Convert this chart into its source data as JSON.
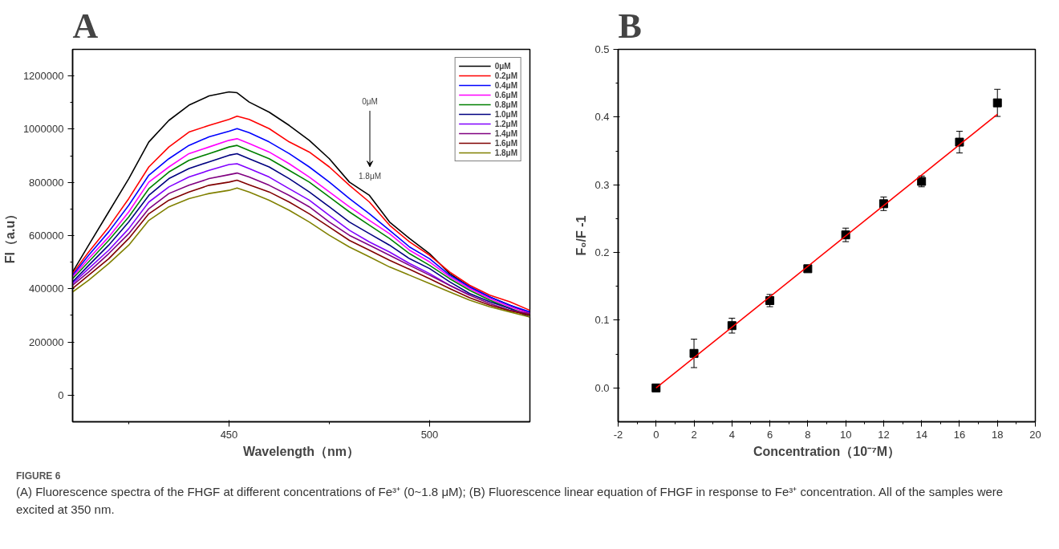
{
  "chart_data": [
    {
      "type": "line",
      "title": "A",
      "xlabel": "Wavelength（nm）",
      "ylabel": "FI（a.u）",
      "x": [
        411,
        415,
        420,
        425,
        430,
        435,
        440,
        445,
        450,
        452,
        455,
        460,
        465,
        470,
        475,
        480,
        485,
        490,
        495,
        500,
        505,
        510,
        515,
        520,
        525
      ],
      "xlim": [
        411,
        525
      ],
      "ylim": [
        -100000,
        1300000
      ],
      "xticks": [
        {
          "value": 425,
          "label": null
        },
        450,
        {
          "value": 475,
          "label": null
        },
        500
      ],
      "yticks": [
        0,
        {
          "value": 100000,
          "label": null
        },
        200000,
        {
          "value": 300000,
          "label": null
        },
        400000,
        {
          "value": 500000,
          "label": null
        },
        600000,
        {
          "value": 700000,
          "label": null
        },
        800000,
        {
          "value": 900000,
          "label": null
        },
        1000000,
        {
          "value": 1100000,
          "label": null
        },
        1200000
      ],
      "grid": false,
      "legend": "top right",
      "marker": "none",
      "line_style": "solid",
      "series": [
        {
          "name": "0μM",
          "color": "#000000",
          "values": [
            463000,
            564000,
            689000,
            814000,
            952000,
            1033000,
            1090000,
            1125000,
            1140000,
            1137000,
            1102000,
            1064000,
            1014000,
            958000,
            889000,
            801000,
            751000,
            651000,
            589000,
            532000,
            457000,
            407000,
            369000,
            338000,
            307000
          ]
        },
        {
          "name": "0.2μM",
          "color": "#ff0000",
          "values": [
            457000,
            538000,
            632000,
            739000,
            858000,
            933000,
            989000,
            1014000,
            1037000,
            1049000,
            1037000,
            1002000,
            952000,
            914000,
            858000,
            789000,
            726000,
            639000,
            576000,
            526000,
            463000,
            413000,
            376000,
            351000,
            319000
          ]
        },
        {
          "name": "0.4μM",
          "color": "#0000ff",
          "values": [
            451000,
            526000,
            614000,
            714000,
            827000,
            889000,
            939000,
            971000,
            992000,
            1002000,
            987000,
            952000,
            908000,
            858000,
            801000,
            739000,
            682000,
            620000,
            557000,
            513000,
            451000,
            407000,
            369000,
            338000,
            313000
          ]
        },
        {
          "name": "0.6μM",
          "color": "#ff00ff",
          "values": [
            445000,
            513000,
            595000,
            689000,
            801000,
            858000,
            908000,
            933000,
            958000,
            964000,
            946000,
            914000,
            870000,
            820000,
            764000,
            708000,
            657000,
            607000,
            545000,
            501000,
            445000,
            401000,
            363000,
            332000,
            307000
          ]
        },
        {
          "name": "0.8μM",
          "color": "#008000",
          "values": [
            438000,
            501000,
            582000,
            670000,
            776000,
            839000,
            883000,
            908000,
            933000,
            939000,
            920000,
            889000,
            845000,
            801000,
            745000,
            689000,
            639000,
            589000,
            532000,
            488000,
            438000,
            394000,
            357000,
            326000,
            301000
          ]
        },
        {
          "name": "1.0μM",
          "color": "#000080",
          "values": [
            426000,
            488000,
            564000,
            651000,
            751000,
            814000,
            852000,
            877000,
            902000,
            908000,
            889000,
            858000,
            814000,
            764000,
            708000,
            651000,
            607000,
            564000,
            513000,
            476000,
            426000,
            382000,
            351000,
            326000,
            294000
          ]
        },
        {
          "name": "1.2μM",
          "color": "#8000ff",
          "values": [
            420000,
            476000,
            545000,
            626000,
            726000,
            783000,
            820000,
            845000,
            867000,
            870000,
            852000,
            820000,
            776000,
            733000,
            676000,
            620000,
            576000,
            538000,
            495000,
            457000,
            413000,
            376000,
            null,
            null,
            null
          ]
        },
        {
          "name": "1.4μM",
          "color": "#800080",
          "values": [
            413000,
            463000,
            532000,
            607000,
            701000,
            758000,
            789000,
            814000,
            829000,
            835000,
            820000,
            789000,
            751000,
            708000,
            651000,
            601000,
            564000,
            526000,
            488000,
            451000,
            413000,
            376000,
            344000,
            319000,
            307000
          ]
        },
        {
          "name": "1.6μM",
          "color": "#800000",
          "values": [
            401000,
            451000,
            513000,
            589000,
            682000,
            733000,
            764000,
            789000,
            801000,
            808000,
            791000,
            764000,
            726000,
            682000,
            632000,
            582000,
            545000,
            507000,
            473000,
            438000,
            401000,
            366000,
            338000,
            317000,
            301000
          ]
        },
        {
          "name": "1.8μM",
          "color": "#808000",
          "values": [
            388000,
            432000,
            495000,
            564000,
            657000,
            708000,
            739000,
            758000,
            770000,
            779000,
            764000,
            733000,
            695000,
            651000,
            601000,
            557000,
            520000,
            482000,
            451000,
            420000,
            388000,
            357000,
            332000,
            313000,
            294000
          ]
        }
      ],
      "annotations": [
        "0μM",
        "1.8μM"
      ]
    },
    {
      "type": "scatter",
      "title": "B",
      "xlabel": "Concentration（10⁻⁷M）",
      "ylabel": "F₀/F -1",
      "xlim": [
        -2,
        20
      ],
      "ylim": [
        -0.05,
        0.5
      ],
      "xticks": [
        -2,
        {
          "value": -1,
          "label": null
        },
        0,
        {
          "value": 1,
          "label": null
        },
        2,
        {
          "value": 3,
          "label": null
        },
        4,
        {
          "value": 5,
          "label": null
        },
        6,
        {
          "value": 7,
          "label": null
        },
        8,
        {
          "value": 9,
          "label": null
        },
        10,
        {
          "value": 11,
          "label": null
        },
        12,
        {
          "value": 13,
          "label": null
        },
        14,
        {
          "value": 15,
          "label": null
        },
        16,
        {
          "value": 17,
          "label": null
        },
        18,
        {
          "value": 19,
          "label": null
        },
        20
      ],
      "yticks": [
        {
          "value": 0,
          "label": "0.0"
        },
        {
          "value": 0.05,
          "label": null
        },
        0.1,
        {
          "value": 0.15,
          "label": null
        },
        0.2,
        {
          "value": 0.25,
          "label": null
        },
        0.3,
        {
          "value": 0.35,
          "label": null
        },
        0.4,
        {
          "value": 0.45,
          "label": null
        },
        0.5
      ],
      "grid": false,
      "legend": false,
      "marker": "square",
      "series": [
        {
          "type": "scatter",
          "color": "#000000",
          "x": [
            0,
            2,
            4,
            6,
            8,
            10,
            12,
            14,
            16,
            18
          ],
          "values": [
            0.0,
            0.051,
            0.092,
            0.129,
            0.176,
            0.226,
            0.272,
            0.305,
            0.363,
            0.421
          ],
          "errors": [
            0.002,
            0.021,
            0.011,
            0.009,
            0.003,
            0.01,
            0.01,
            0.008,
            0.016,
            0.02
          ]
        },
        {
          "type": "line",
          "color": "#ff0000",
          "marker": "none",
          "x": [
            0,
            18
          ],
          "values": [
            0.0,
            0.404
          ]
        }
      ],
      "annotations": [
        "FIGURE 6",
        "(A) Fluorescence spectra of the FHGF at different concentrations of Fe³⁺ (0~1.8 μM); (B) Fluorescence linear equation of FHGF in response to Fe³⁺ concentration. All of the samples were excited at 350 nm."
      ]
    }
  ]
}
